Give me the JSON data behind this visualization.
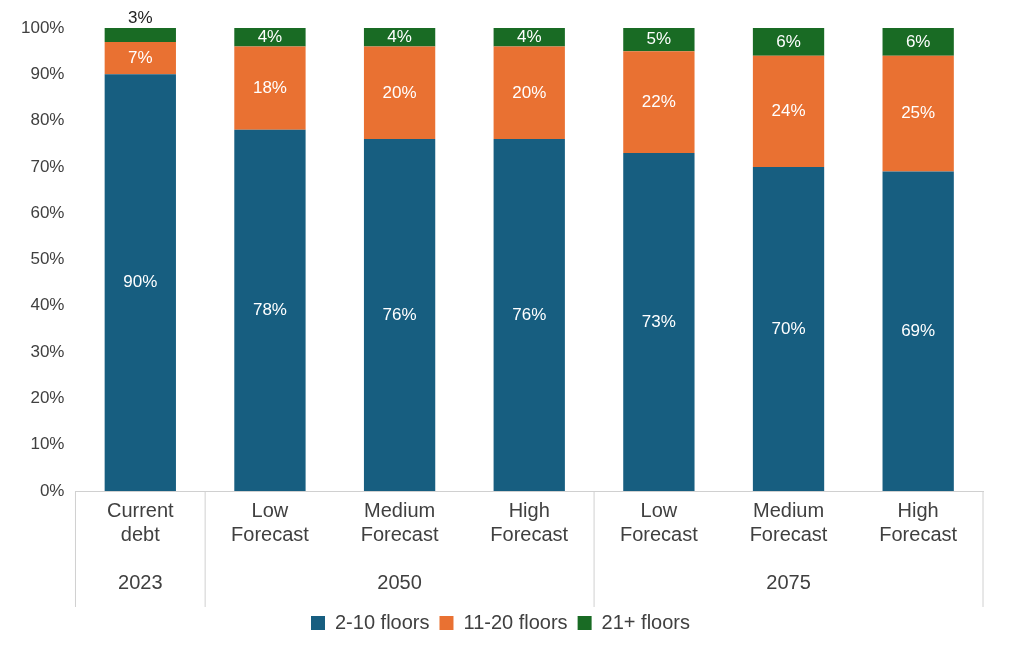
{
  "chart_data": {
    "type": "bar",
    "stacked": true,
    "grid": false,
    "legend": "bottom",
    "categories": [
      "Current debt",
      "Low Forecast",
      "Medium Forecast",
      "High Forecast",
      "Low Forecast",
      "Medium Forecast",
      "High Forecast"
    ],
    "ylim": [
      0,
      100
    ],
    "yticks": [
      {
        "value": 0,
        "label": "0%"
      },
      {
        "value": 10,
        "label": "10%"
      },
      {
        "value": 20,
        "label": "20%"
      },
      {
        "value": 30,
        "label": "30%"
      },
      {
        "value": 40,
        "label": "40%"
      },
      {
        "value": 50,
        "label": "50%"
      },
      {
        "value": 60,
        "label": "60%"
      },
      {
        "value": 70,
        "label": "70%"
      },
      {
        "value": 80,
        "label": "80%"
      },
      {
        "value": 90,
        "label": "90%"
      },
      {
        "value": 100,
        "label": "100%"
      }
    ],
    "series": [
      {
        "name": "2-10 floors",
        "color": "#175e80",
        "values": [
          90,
          78,
          76,
          76,
          73,
          70,
          69
        ],
        "value_labels": [
          "90%",
          "78%",
          "76%",
          "76%",
          "73%",
          "70%",
          "69%"
        ]
      },
      {
        "name": "11-20 floors",
        "color": "#e97132",
        "values": [
          7,
          18,
          20,
          20,
          22,
          24,
          25
        ],
        "value_labels": [
          "7%",
          "18%",
          "20%",
          "20%",
          "22%",
          "24%",
          "25%"
        ]
      },
      {
        "name": "21+ floors",
        "color": "#196b24",
        "values": [
          3,
          4,
          4,
          4,
          5,
          6,
          6
        ],
        "value_labels": [
          "3%",
          "4%",
          "4%",
          "4%",
          "5%",
          "6%",
          "6%"
        ]
      }
    ],
    "annotations": [
      "2023",
      "2050",
      "2075"
    ]
  }
}
